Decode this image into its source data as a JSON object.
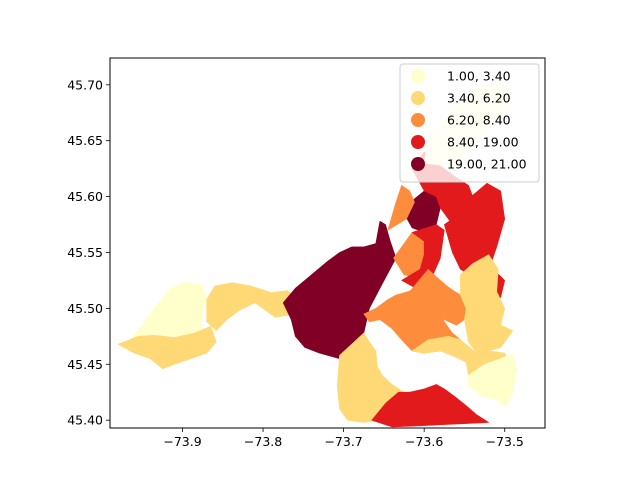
{
  "figure": {
    "background": "#ffffff"
  },
  "chart_data": {
    "type": "choropleth",
    "title": "",
    "xlabel": "",
    "ylabel": "",
    "xlim": [
      -73.99,
      -73.45
    ],
    "ylim": [
      45.393,
      45.724
    ],
    "xticks": [
      -73.9,
      -73.8,
      -73.7,
      -73.6,
      -73.5
    ],
    "xtick_labels": [
      "−73.9",
      "−73.8",
      "−73.7",
      "−73.6",
      "−73.5"
    ],
    "yticks": [
      45.4,
      45.45,
      45.5,
      45.55,
      45.6,
      45.65,
      45.7
    ],
    "ytick_labels": [
      "45.40",
      "45.45",
      "45.50",
      "45.55",
      "45.60",
      "45.65",
      "45.70"
    ],
    "grid": false,
    "legend": {
      "placement": "upper right",
      "entries": [
        {
          "label": "1.00,  3.40",
          "color": "#ffffcc"
        },
        {
          "label": "3.40,  6.20",
          "color": "#fed976"
        },
        {
          "label": "6.20,  8.40",
          "color": "#fd8d3c"
        },
        {
          "label": "8.40, 19.00",
          "color": "#e31a1c"
        },
        {
          "label": "19.00, 21.00",
          "color": "#800026"
        }
      ]
    },
    "regions": [
      {
        "class": 0,
        "points": [
          [
            -73.97,
            45.468
          ],
          [
            -73.955,
            45.48
          ],
          [
            -73.935,
            45.5
          ],
          [
            -73.915,
            45.518
          ],
          [
            -73.898,
            45.523
          ],
          [
            -73.878,
            45.522
          ],
          [
            -73.87,
            45.51
          ],
          [
            -73.875,
            45.495
          ],
          [
            -73.878,
            45.478
          ],
          [
            -73.885,
            45.468
          ],
          [
            -73.9,
            45.462
          ],
          [
            -73.93,
            45.463
          ],
          [
            -73.955,
            45.465
          ]
        ]
      },
      {
        "class": 1,
        "points": [
          [
            -73.98,
            45.468
          ],
          [
            -73.955,
            45.475
          ],
          [
            -73.935,
            45.476
          ],
          [
            -73.91,
            45.474
          ],
          [
            -73.885,
            45.478
          ],
          [
            -73.865,
            45.484
          ],
          [
            -73.858,
            45.47
          ],
          [
            -73.87,
            45.46
          ],
          [
            -73.89,
            45.455
          ],
          [
            -73.91,
            45.45
          ],
          [
            -73.925,
            45.446
          ],
          [
            -73.94,
            45.455
          ],
          [
            -73.96,
            45.46
          ]
        ]
      },
      {
        "class": 1,
        "points": [
          [
            -73.87,
            45.488
          ],
          [
            -73.87,
            45.508
          ],
          [
            -73.86,
            45.52
          ],
          [
            -73.838,
            45.523
          ],
          [
            -73.815,
            45.52
          ],
          [
            -73.79,
            45.514
          ],
          [
            -73.77,
            45.516
          ],
          [
            -73.755,
            45.508
          ],
          [
            -73.752,
            45.5
          ],
          [
            -73.76,
            45.495
          ],
          [
            -73.785,
            45.492
          ],
          [
            -73.81,
            45.505
          ],
          [
            -73.83,
            45.498
          ],
          [
            -73.845,
            45.49
          ],
          [
            -73.858,
            45.48
          ]
        ]
      },
      {
        "class": 4,
        "points": [
          [
            -73.765,
            45.49
          ],
          [
            -73.775,
            45.505
          ],
          [
            -73.76,
            45.518
          ],
          [
            -73.74,
            45.53
          ],
          [
            -73.72,
            45.542
          ],
          [
            -73.705,
            45.55
          ],
          [
            -73.69,
            45.555
          ],
          [
            -73.675,
            45.555
          ],
          [
            -73.66,
            45.558
          ],
          [
            -73.655,
            45.578
          ],
          [
            -73.648,
            45.575
          ],
          [
            -73.642,
            45.56
          ],
          [
            -73.635,
            45.545
          ],
          [
            -73.655,
            45.518
          ],
          [
            -73.668,
            45.5
          ],
          [
            -73.675,
            45.478
          ],
          [
            -73.69,
            45.465
          ],
          [
            -73.705,
            45.455
          ],
          [
            -73.72,
            45.458
          ],
          [
            -73.73,
            45.46
          ],
          [
            -73.748,
            45.465
          ],
          [
            -73.76,
            45.475
          ]
        ]
      },
      {
        "class": 4,
        "points": [
          [
            -73.625,
            45.585
          ],
          [
            -73.612,
            45.598
          ],
          [
            -73.6,
            45.605
          ],
          [
            -73.585,
            45.6
          ],
          [
            -73.58,
            45.59
          ],
          [
            -73.585,
            45.575
          ],
          [
            -73.6,
            45.568
          ],
          [
            -73.615,
            45.572
          ]
        ]
      },
      {
        "class": 2,
        "points": [
          [
            -73.645,
            45.57
          ],
          [
            -73.635,
            45.595
          ],
          [
            -73.628,
            45.61
          ],
          [
            -73.618,
            45.605
          ],
          [
            -73.612,
            45.595
          ],
          [
            -73.622,
            45.58
          ]
        ]
      },
      {
        "class": 2,
        "points": [
          [
            -73.638,
            45.545
          ],
          [
            -73.615,
            45.568
          ],
          [
            -73.6,
            45.56
          ],
          [
            -73.595,
            45.548
          ],
          [
            -73.605,
            45.535
          ],
          [
            -73.612,
            45.528
          ],
          [
            -73.625,
            45.53
          ]
        ]
      },
      {
        "class": 3,
        "points": [
          [
            -73.628,
            45.525
          ],
          [
            -73.605,
            45.535
          ],
          [
            -73.6,
            45.548
          ],
          [
            -73.6,
            45.56
          ],
          [
            -73.615,
            45.568
          ],
          [
            -73.585,
            45.575
          ],
          [
            -73.575,
            45.57
          ],
          [
            -73.58,
            45.545
          ],
          [
            -73.592,
            45.525
          ],
          [
            -73.61,
            45.518
          ]
        ]
      },
      {
        "class": 3,
        "points": [
          [
            -73.615,
            45.625
          ],
          [
            -73.6,
            45.64
          ],
          [
            -73.585,
            45.63
          ],
          [
            -73.562,
            45.618
          ],
          [
            -73.545,
            45.61
          ],
          [
            -73.538,
            45.597
          ],
          [
            -73.548,
            45.585
          ],
          [
            -73.565,
            45.575
          ],
          [
            -73.58,
            45.59
          ],
          [
            -73.585,
            45.6
          ],
          [
            -73.6,
            45.605
          ]
        ]
      },
      {
        "class": 3,
        "points": [
          [
            -73.575,
            45.575
          ],
          [
            -73.555,
            45.585
          ],
          [
            -73.545,
            45.598
          ],
          [
            -73.522,
            45.612
          ],
          [
            -73.505,
            45.605
          ],
          [
            -73.5,
            45.58
          ],
          [
            -73.51,
            45.555
          ],
          [
            -73.518,
            45.538
          ],
          [
            -73.5,
            45.525
          ],
          [
            -73.505,
            45.51
          ],
          [
            -73.52,
            45.505
          ],
          [
            -73.538,
            45.528
          ],
          [
            -73.555,
            45.535
          ],
          [
            -73.565,
            45.55
          ]
        ]
      },
      {
        "class": 0,
        "points": [
          [
            -73.6,
            45.63
          ],
          [
            -73.595,
            45.65
          ],
          [
            -73.575,
            45.67
          ],
          [
            -73.555,
            45.685
          ],
          [
            -73.54,
            45.695
          ],
          [
            -73.525,
            45.7
          ],
          [
            -73.51,
            45.702
          ],
          [
            -73.49,
            45.695
          ],
          [
            -73.495,
            45.68
          ],
          [
            -73.515,
            45.665
          ],
          [
            -73.54,
            45.645
          ],
          [
            -73.56,
            45.63
          ],
          [
            -73.58,
            45.628
          ]
        ]
      },
      {
        "class": 2,
        "points": [
          [
            -73.595,
            45.535
          ],
          [
            -73.58,
            45.525
          ],
          [
            -73.568,
            45.518
          ],
          [
            -73.555,
            45.512
          ],
          [
            -73.548,
            45.5
          ],
          [
            -73.55,
            45.49
          ],
          [
            -73.56,
            45.485
          ],
          [
            -73.575,
            45.49
          ],
          [
            -73.588,
            45.5
          ],
          [
            -73.605,
            45.51
          ],
          [
            -73.618,
            45.515
          ]
        ]
      },
      {
        "class": 0,
        "points": [
          [
            -73.618,
            45.515
          ],
          [
            -73.605,
            45.505
          ],
          [
            -73.6,
            45.495
          ],
          [
            -73.592,
            45.488
          ],
          [
            -73.58,
            45.48
          ],
          [
            -73.59,
            45.475
          ],
          [
            -73.605,
            45.478
          ],
          [
            -73.62,
            45.48
          ],
          [
            -73.632,
            45.49
          ],
          [
            -73.638,
            45.502
          ]
        ]
      },
      {
        "class": 2,
        "points": [
          [
            -73.675,
            45.495
          ],
          [
            -73.66,
            45.5
          ],
          [
            -73.645,
            45.508
          ],
          [
            -73.635,
            45.512
          ],
          [
            -73.62,
            45.515
          ],
          [
            -73.605,
            45.52
          ],
          [
            -73.59,
            45.523
          ],
          [
            -73.585,
            45.51
          ],
          [
            -73.58,
            45.5
          ],
          [
            -73.575,
            45.488
          ],
          [
            -73.565,
            45.478
          ],
          [
            -73.555,
            45.472
          ],
          [
            -73.545,
            45.462
          ],
          [
            -73.548,
            45.452
          ],
          [
            -73.565,
            45.458
          ],
          [
            -73.58,
            45.462
          ],
          [
            -73.6,
            45.46
          ],
          [
            -73.615,
            45.462
          ],
          [
            -73.628,
            45.472
          ],
          [
            -73.64,
            45.482
          ],
          [
            -73.655,
            45.49
          ],
          [
            -73.668,
            45.488
          ]
        ]
      },
      {
        "class": 1,
        "points": [
          [
            -73.555,
            45.53
          ],
          [
            -73.54,
            45.54
          ],
          [
            -73.52,
            45.548
          ],
          [
            -73.508,
            45.535
          ],
          [
            -73.51,
            45.515
          ],
          [
            -73.5,
            45.5
          ],
          [
            -73.505,
            45.485
          ],
          [
            -73.49,
            45.48
          ],
          [
            -73.505,
            45.465
          ],
          [
            -73.52,
            45.462
          ],
          [
            -73.535,
            45.46
          ],
          [
            -73.545,
            45.47
          ],
          [
            -73.55,
            45.49
          ],
          [
            -73.548,
            45.5
          ],
          [
            -73.555,
            45.512
          ]
        ]
      },
      {
        "class": 1,
        "points": [
          [
            -73.705,
            45.458
          ],
          [
            -73.69,
            45.468
          ],
          [
            -73.675,
            45.478
          ],
          [
            -73.668,
            45.47
          ],
          [
            -73.66,
            45.462
          ],
          [
            -73.658,
            45.448
          ],
          [
            -73.652,
            45.44
          ],
          [
            -73.64,
            45.432
          ],
          [
            -73.625,
            45.425
          ],
          [
            -73.61,
            45.42
          ],
          [
            -73.6,
            45.418
          ],
          [
            -73.61,
            45.41
          ],
          [
            -73.63,
            45.405
          ],
          [
            -73.655,
            45.4
          ],
          [
            -73.675,
            45.398
          ],
          [
            -73.695,
            45.4
          ],
          [
            -73.705,
            45.41
          ],
          [
            -73.708,
            45.43
          ]
        ]
      },
      {
        "class": 1,
        "points": [
          [
            -73.615,
            45.462
          ],
          [
            -73.6,
            45.46
          ],
          [
            -73.58,
            45.462
          ],
          [
            -73.565,
            45.458
          ],
          [
            -73.548,
            45.452
          ],
          [
            -73.545,
            45.44
          ],
          [
            -73.54,
            45.43
          ],
          [
            -73.525,
            45.425
          ],
          [
            -73.51,
            45.422
          ],
          [
            -73.5,
            45.43
          ],
          [
            -73.49,
            45.445
          ],
          [
            -73.5,
            45.46
          ],
          [
            -73.52,
            45.462
          ],
          [
            -73.535,
            45.46
          ],
          [
            -73.555,
            45.472
          ],
          [
            -73.57,
            45.475
          ],
          [
            -73.595,
            45.472
          ]
        ]
      },
      {
        "class": 0,
        "points": [
          [
            -73.545,
            45.44
          ],
          [
            -73.525,
            45.45
          ],
          [
            -73.505,
            45.455
          ],
          [
            -73.49,
            45.46
          ],
          [
            -73.485,
            45.445
          ],
          [
            -73.49,
            45.425
          ],
          [
            -73.498,
            45.412
          ],
          [
            -73.51,
            45.418
          ],
          [
            -73.53,
            45.422
          ],
          [
            -73.545,
            45.43
          ]
        ]
      },
      {
        "class": 3,
        "points": [
          [
            -73.665,
            45.4
          ],
          [
            -73.648,
            45.415
          ],
          [
            -73.632,
            45.425
          ],
          [
            -73.618,
            45.425
          ],
          [
            -73.6,
            45.428
          ],
          [
            -73.585,
            45.432
          ],
          [
            -73.575,
            45.428
          ],
          [
            -73.56,
            45.42
          ],
          [
            -73.548,
            45.413
          ],
          [
            -73.535,
            45.405
          ],
          [
            -73.52,
            45.398
          ],
          [
            -73.545,
            45.397
          ],
          [
            -73.575,
            45.396
          ],
          [
            -73.605,
            45.395
          ],
          [
            -73.64,
            45.394
          ]
        ]
      }
    ]
  }
}
